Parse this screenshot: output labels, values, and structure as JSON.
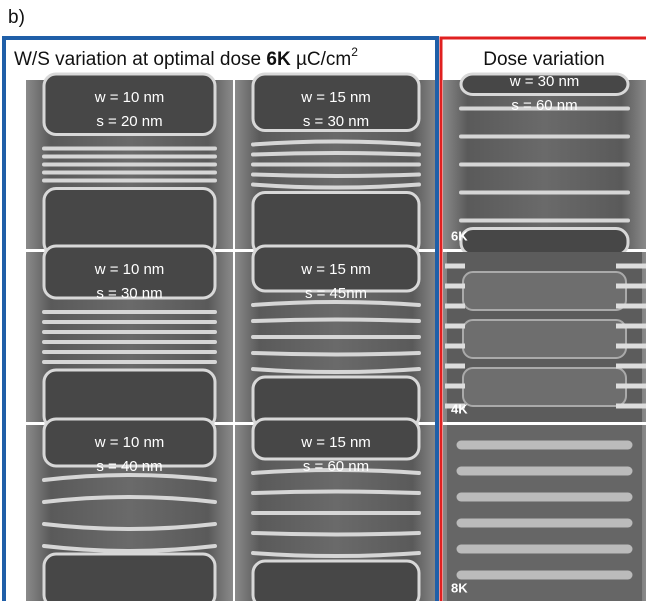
{
  "panel_label": "b)",
  "left": {
    "title_prefix": "W/S variation at optimal dose",
    "title_bold": "6K",
    "title_unit": "µC/cm",
    "title_sup": "2",
    "tiles": [
      {
        "lines": [
          "w = 10 nm",
          "s = 20 nm"
        ]
      },
      {
        "lines": [
          "w = 15 nm",
          "s = 30 nm"
        ]
      },
      {
        "lines": [
          "w = 10 nm",
          "s = 30 nm"
        ]
      },
      {
        "lines": [
          "w = 15 nm",
          "s = 45nm"
        ]
      },
      {
        "lines": [
          "w = 10 nm",
          "s = 40 nm"
        ]
      },
      {
        "lines": [
          "w = 15 nm",
          "s = 60 nm"
        ]
      }
    ]
  },
  "right": {
    "title": "Dose variation",
    "tiles": [
      {
        "lines": [
          "w = 30 nm",
          "s = 60 nm"
        ],
        "dose": "6K"
      },
      {
        "dose": "4K"
      },
      {
        "dose": "8K"
      }
    ]
  }
}
